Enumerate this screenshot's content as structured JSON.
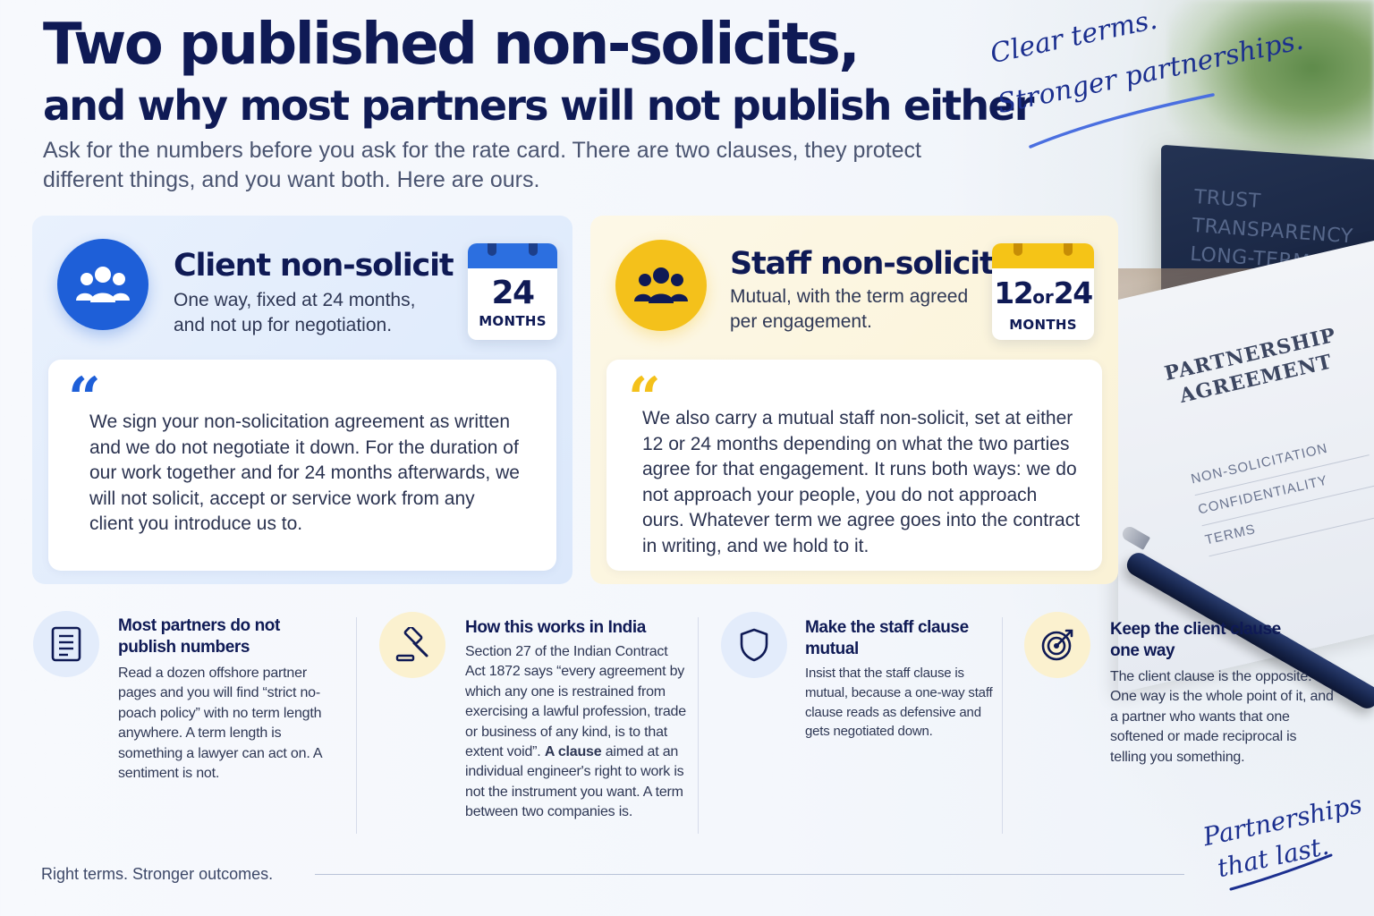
{
  "header": {
    "title": "Two published non-solicits,",
    "subtitle": "and why most partners will not publish either",
    "intro": "Ask for the numbers before you ask for the rate card. There are two clauses, they protect different things, and you want both. Here are ours."
  },
  "tagline_top": {
    "line1": "Clear terms.",
    "line2": "Stronger partnerships."
  },
  "tagline_bottom": {
    "line1": "Partnerships",
    "line2": "that last."
  },
  "scene": {
    "block_words": [
      "TRUST",
      "TRANSPARENCY",
      "LONG-TERM"
    ],
    "paper_title": "PARTNERSHIP AGREEMENT",
    "paper_lines": [
      "NON-SOLICITATION",
      "CONFIDENTIALITY",
      "TERMS"
    ]
  },
  "client_card": {
    "heading": "Client non-solicit",
    "subtext": "One way, fixed at 24 months, and not up for negotiation.",
    "calendar_number": "24",
    "calendar_unit": "MONTHS",
    "quote": "We sign your non-solicitation agreement as written and we do not negotiate it down. For the duration of our work together and for 24 months afterwards, we will not solicit, accept or service work from any client you introduce us to.",
    "accent_color": "#1e5fd8"
  },
  "staff_card": {
    "heading": "Staff non-solicit",
    "subtext": "Mutual, with the term agreed per engagement.",
    "calendar_number_a": "12",
    "calendar_or": "or",
    "calendar_number_b": "24",
    "calendar_unit": "MONTHS",
    "quote": "We also carry a mutual staff non-solicit, set at either 12 or 24 months depending on what the two parties agree for that engagement. It runs both ways: we do not approach your people, you do not approach ours. Whatever term we agree goes into the contract in writing, and we hold to it.",
    "accent_color": "#f4c11b"
  },
  "columns": [
    {
      "icon": "document-icon",
      "heading": "Most partners do not publish numbers",
      "text": "Read a dozen offshore partner pages and you will find “strict no-poach policy” with no term length anywhere. A term length is something a lawyer can act on. A sentiment is not."
    },
    {
      "icon": "gavel-icon",
      "heading": "How this works in India",
      "text": "Section 27 of the Indian Contract Act 1872 says “every agreement by which any one is restrained from exercising a lawful profession, trade or business of any kind, is to that extent void”.",
      "text_bold": "A clause",
      "text_after": "aimed at an individual engineer's right to work is not the instrument you want. A term between two companies is."
    },
    {
      "icon": "shield-icon",
      "heading": "Make the staff clause mutual",
      "text": "Insist that the staff clause is mutual, because a one-way staff clause reads as defensive and gets negotiated down."
    },
    {
      "icon": "target-icon",
      "heading": "Keep the client clause one way",
      "text": "The client clause is the opposite. One way is the whole point of it, and a partner who wants that one softened or made reciprocal is telling you something."
    }
  ],
  "footer": {
    "text": "Right terms. Stronger outcomes."
  }
}
